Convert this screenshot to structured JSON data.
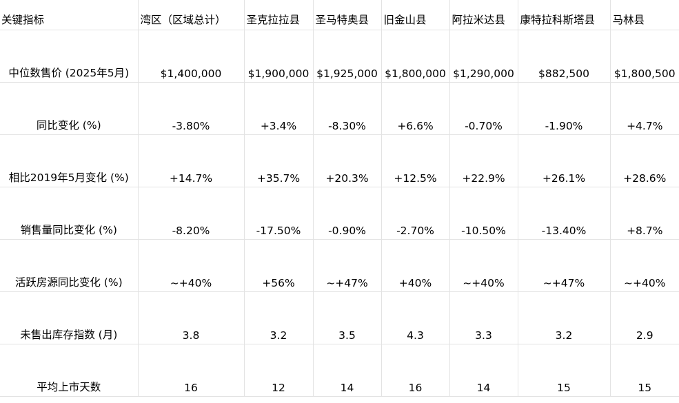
{
  "table": {
    "columns": [
      "关键指标",
      "湾区（区域总计）",
      "圣克拉拉县",
      "圣马特奥县",
      "旧金山县",
      "阿拉米达县",
      "康特拉科斯塔县",
      "马林县"
    ],
    "rows": [
      {
        "metric": "中位数售价 (2025年5月)",
        "values": [
          "$1,400,000",
          "$1,900,000",
          "$1,925,000",
          "$1,800,000",
          "$1,290,000",
          "$882,500",
          "$1,800,500"
        ]
      },
      {
        "metric": "同比变化 (%)",
        "values": [
          "-3.80%",
          "+3.4%",
          "-8.30%",
          "+6.6%",
          "-0.70%",
          "-1.90%",
          "+4.7%"
        ]
      },
      {
        "metric": "相比2019年5月变化 (%)",
        "values": [
          "+14.7%",
          "+35.7%",
          "+20.3%",
          "+12.5%",
          "+22.9%",
          "+26.1%",
          "+28.6%"
        ]
      },
      {
        "metric": "销售量同比变化 (%)",
        "values": [
          "-8.20%",
          "-17.50%",
          "-0.90%",
          "-2.70%",
          "-10.50%",
          "-13.40%",
          "+8.7%"
        ]
      },
      {
        "metric": "活跃房源同比变化 (%)",
        "values": [
          "~+40%",
          "+56%",
          "~+47%",
          "+40%",
          "~+40%",
          "~+47%",
          "~+40%"
        ]
      },
      {
        "metric": "未售出库存指数 (月)",
        "values": [
          "3.8",
          "3.2",
          "3.5",
          "4.3",
          "3.3",
          "3.2",
          "2.9"
        ]
      },
      {
        "metric": "平均上市天数",
        "values": [
          "16",
          "12",
          "14",
          "16",
          "14",
          "15",
          "15"
        ]
      }
    ]
  }
}
